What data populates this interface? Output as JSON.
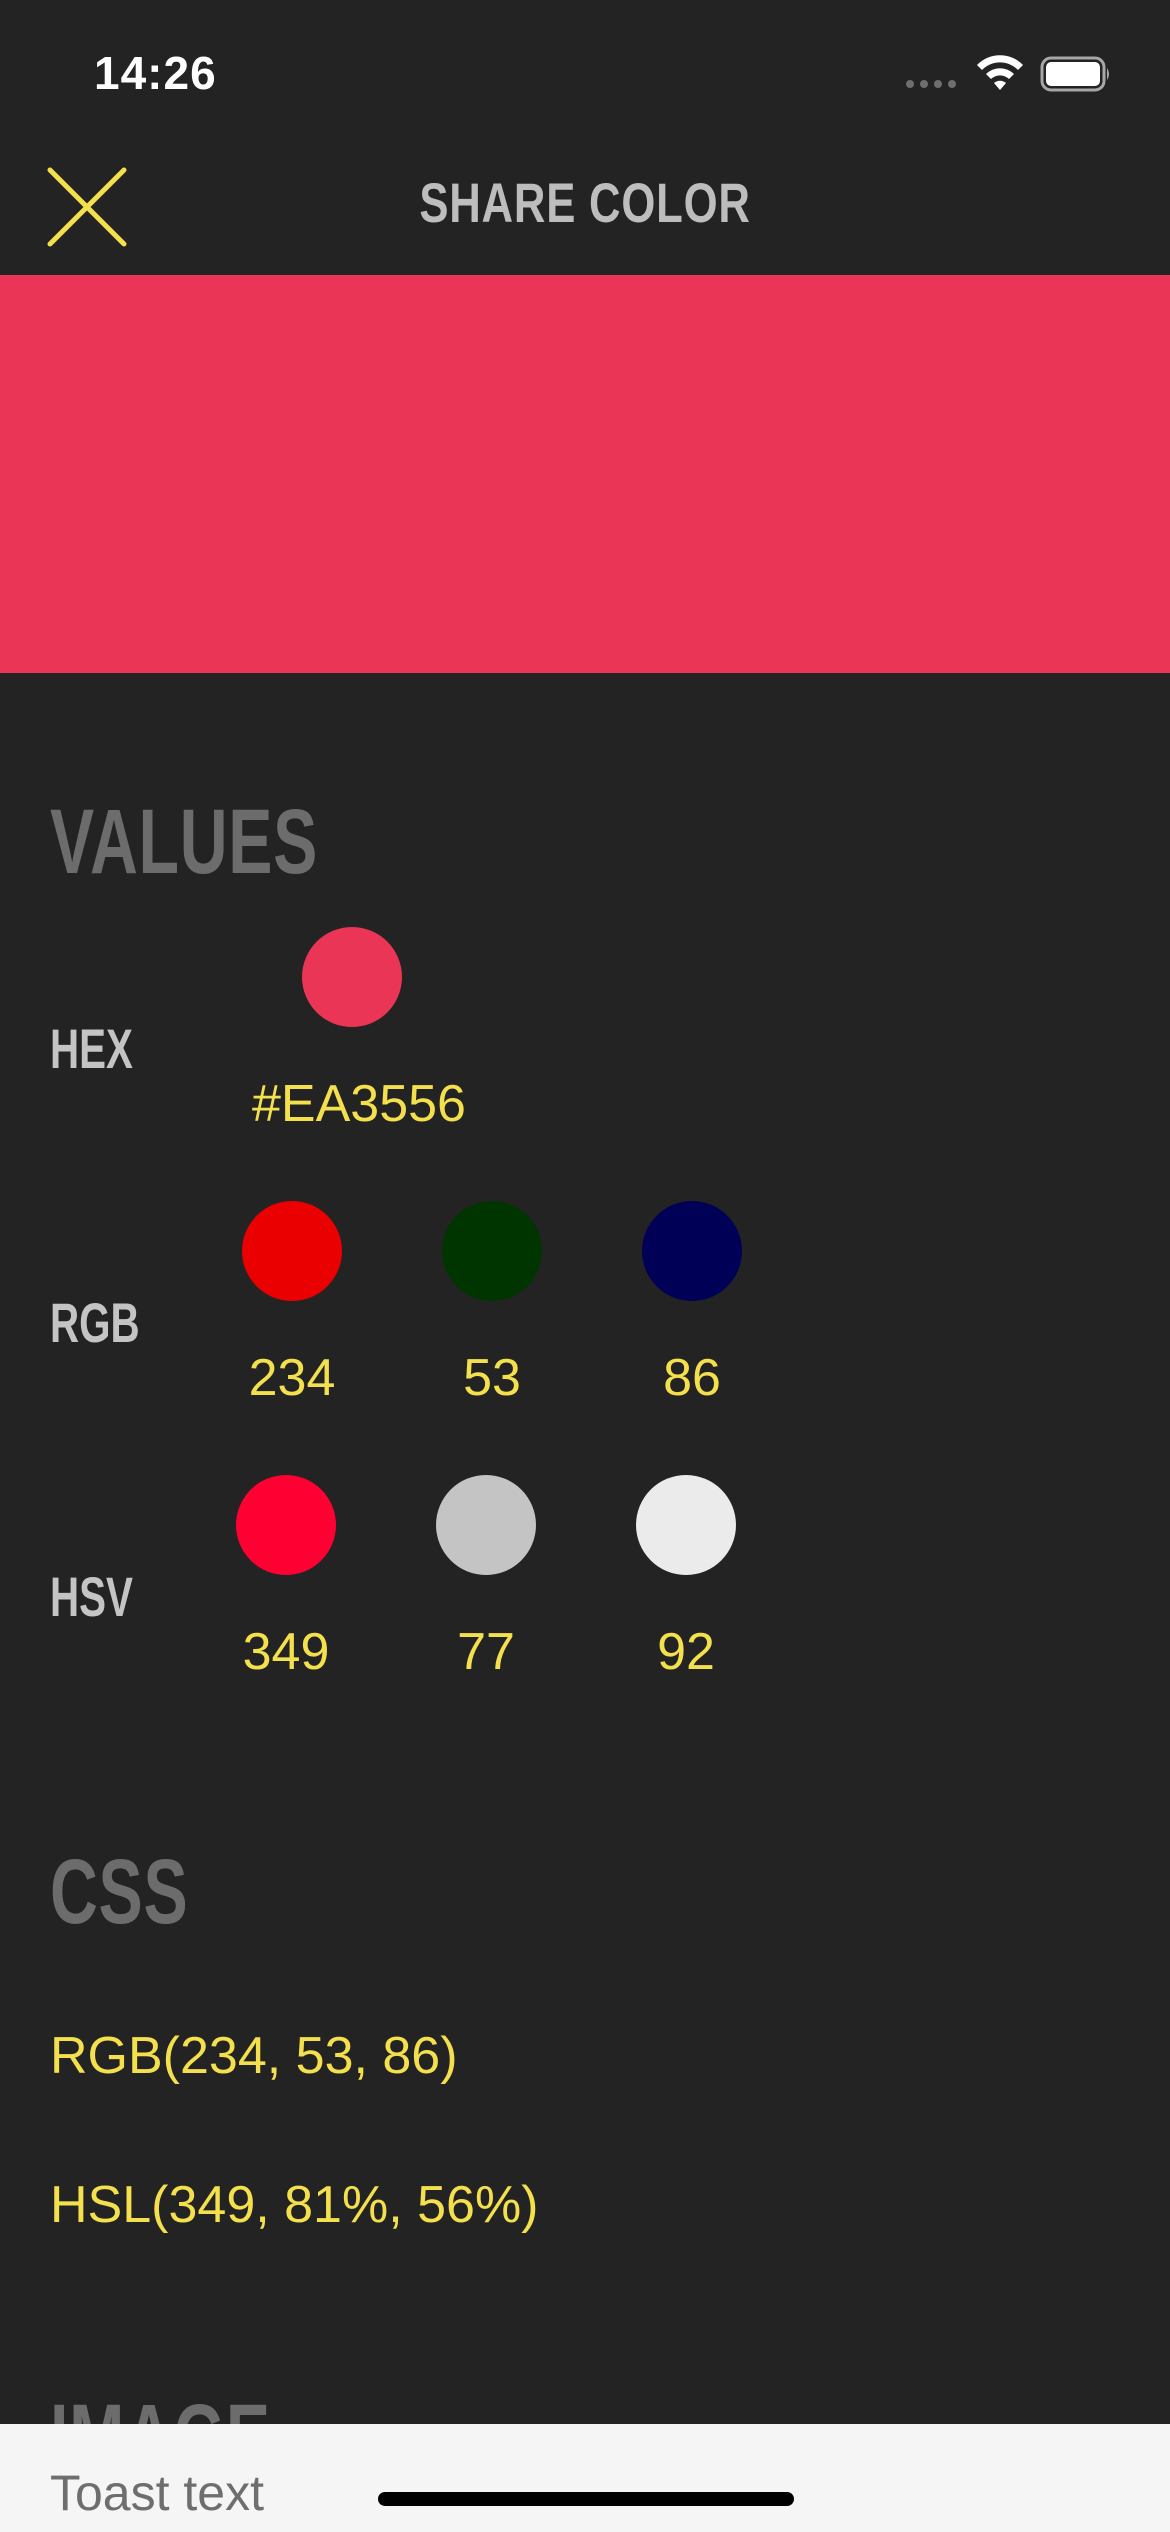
{
  "status_bar": {
    "time": "14:26",
    "signal_icon": "signal-dots-icon",
    "wifi_icon": "wifi-icon",
    "battery_icon": "battery-icon"
  },
  "nav": {
    "title": "SHARE COLOR",
    "close_icon": "close-icon",
    "accent": "#F4E04D"
  },
  "swatch": {
    "color": "#EA3556"
  },
  "values": {
    "title": "VALUES",
    "hex": {
      "label": "HEX",
      "dot_color": "#EA3556",
      "value": "#EA3556"
    },
    "rgb": {
      "label": "RGB",
      "channels": [
        {
          "dot_color": "#EA0000",
          "value": "234"
        },
        {
          "dot_color": "#003500",
          "value": "53"
        },
        {
          "dot_color": "#000056",
          "value": "86"
        }
      ]
    },
    "hsv": {
      "label": "HSV",
      "channels": [
        {
          "dot_color": "#FF0033",
          "value": "349"
        },
        {
          "dot_color": "#C4C4C4",
          "value": "77"
        },
        {
          "dot_color": "#EBEBEB",
          "value": "92"
        }
      ]
    }
  },
  "css": {
    "title": "CSS",
    "rgb": "RGB(234, 53, 86)",
    "hsl": "HSL(349, 81%, 56%)"
  },
  "image": {
    "title": "IMAGE"
  },
  "toast": {
    "text": "Toast text"
  }
}
